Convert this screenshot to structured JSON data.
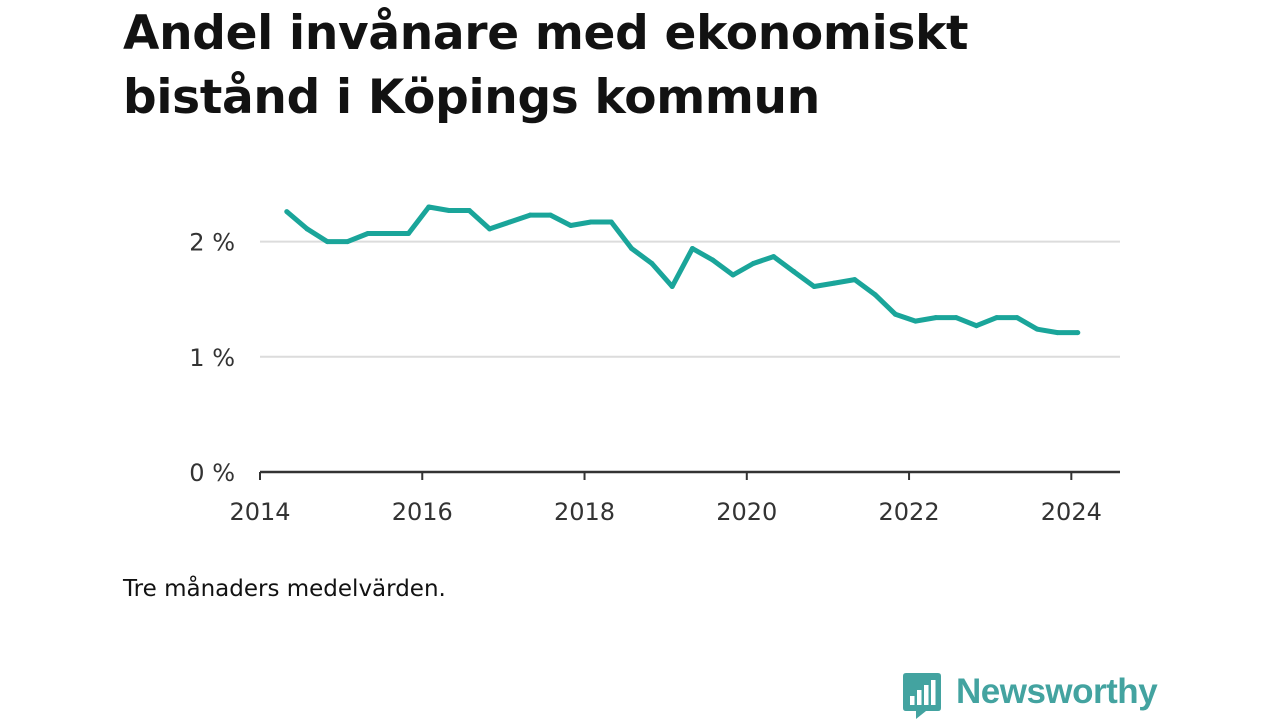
{
  "title_line1": "Andel invånare med ekonomiskt",
  "title_line2": "bistånd i Köpings kommun",
  "caption": "Tre månaders medelvärden.",
  "brand": {
    "name": "Newsworthy",
    "color": "#43a3a0",
    "icon": "bar-chart-speech-bubble-icon"
  },
  "chart_data": {
    "type": "line",
    "title": "Andel invånare med ekonomiskt bistånd i Köpings kommun",
    "xlabel": "",
    "ylabel": "",
    "xlim": [
      2014,
      2024.6
    ],
    "ylim": [
      0,
      2.5
    ],
    "x_ticks": [
      {
        "value": 2014,
        "label": "2014"
      },
      {
        "value": 2016,
        "label": "2016"
      },
      {
        "value": 2018,
        "label": "2018"
      },
      {
        "value": 2020,
        "label": "2020"
      },
      {
        "value": 2022,
        "label": "2022"
      },
      {
        "value": 2024,
        "label": "2024"
      }
    ],
    "y_ticks": [
      {
        "value": 0,
        "label": "0 %"
      },
      {
        "value": 1,
        "label": "1 %"
      },
      {
        "value": 2,
        "label": "2 %"
      }
    ],
    "grid": true,
    "line_color": "#1aa59a",
    "series": [
      {
        "x": [
          2014.33,
          2014.58,
          2014.83,
          2015.08,
          2015.33,
          2015.58,
          2015.83,
          2016.08,
          2016.33,
          2016.58,
          2016.83,
          2017.08,
          2017.33,
          2017.58,
          2017.83,
          2018.08,
          2018.33,
          2018.58,
          2018.83,
          2019.08,
          2019.33,
          2019.58,
          2019.83,
          2020.08,
          2020.33,
          2020.58,
          2020.83,
          2021.08,
          2021.33,
          2021.58,
          2021.83,
          2022.08,
          2022.33,
          2022.58,
          2022.83,
          2023.08,
          2023.33,
          2023.58,
          2023.83,
          2024.08
        ],
        "values": [
          2.26,
          2.11,
          2.0,
          2.0,
          2.07,
          2.07,
          2.07,
          2.3,
          2.27,
          2.27,
          2.11,
          2.17,
          2.23,
          2.23,
          2.14,
          2.17,
          2.17,
          1.94,
          1.81,
          1.61,
          1.94,
          1.84,
          1.71,
          1.81,
          1.87,
          1.74,
          1.61,
          1.64,
          1.67,
          1.54,
          1.37,
          1.31,
          1.34,
          1.34,
          1.27,
          1.34,
          1.34,
          1.24,
          1.21,
          1.21
        ]
      }
    ]
  }
}
